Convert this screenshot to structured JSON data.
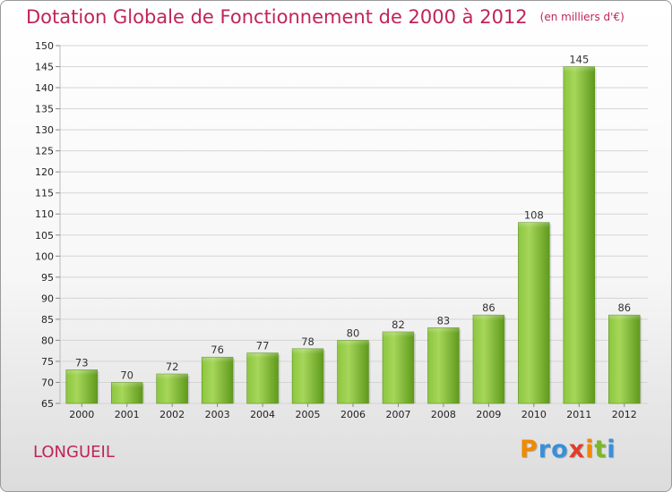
{
  "chart_data": {
    "type": "bar",
    "title": "Dotation Globale de Fonctionnement de 2000 à 2012",
    "subtitle": "(en milliers d'€)",
    "categories": [
      "2000",
      "2001",
      "2002",
      "2003",
      "2004",
      "2005",
      "2006",
      "2007",
      "2008",
      "2009",
      "2010",
      "2011",
      "2012"
    ],
    "values": [
      73,
      70,
      72,
      76,
      77,
      78,
      80,
      82,
      83,
      86,
      108,
      145,
      86
    ],
    "ylim": [
      65,
      150
    ],
    "yticks": [
      65,
      70,
      75,
      80,
      85,
      90,
      95,
      100,
      105,
      110,
      115,
      120,
      125,
      130,
      135,
      140,
      145,
      150
    ],
    "grid": true,
    "bar_color": "#7ab82a"
  },
  "footer": {
    "place": "LONGUEIL",
    "logo_letters": [
      {
        "ch": "P",
        "color": "#f08a00"
      },
      {
        "ch": "r",
        "color": "#3a8fd8"
      },
      {
        "ch": "o",
        "color": "#3a8fd8"
      },
      {
        "ch": "x",
        "color": "#e23c2a"
      },
      {
        "ch": "i",
        "color": "#f08a00"
      },
      {
        "ch": "t",
        "color": "#7ab82a"
      },
      {
        "ch": "i",
        "color": "#3a8fd8"
      }
    ]
  }
}
